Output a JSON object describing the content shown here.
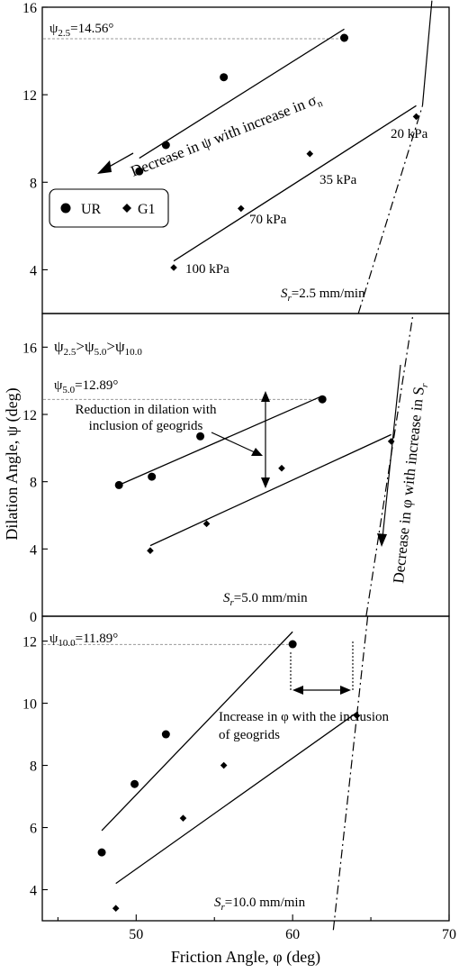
{
  "axes": {
    "xlabel": "Friction Angle, φ (deg)",
    "ylabel": "Dilation Angle, ψ (deg)",
    "xticks": [
      50,
      60,
      70
    ],
    "xlim": [
      44,
      70
    ],
    "panel_yticks": [
      [
        4,
        8,
        12,
        16
      ],
      [
        0,
        4,
        8,
        12,
        16
      ],
      [
        4,
        6,
        8,
        10,
        12
      ]
    ]
  },
  "legend": {
    "ur": "UR",
    "g1": "G1"
  },
  "colors": {
    "ink": "#000000",
    "ref_line": "#9a9a9a"
  },
  "panels": [
    {
      "id": "2.5",
      "ylim": [
        2,
        16
      ],
      "psi_ref": {
        "value": 14.56,
        "base": "ψ",
        "sub": "2.5",
        "rest": "=14.56°"
      },
      "rate": {
        "base": "S",
        "sub": "r",
        "rest": "=2.5 mm/min"
      },
      "annotations": {
        "decrease_psi_main": "Decrease in ψ with increase in σ",
        "decrease_psi_sub": "n",
        "p20": "20 kPa",
        "p35": "35 kPa",
        "p70": "70 kPa",
        "p100": "100 kPa"
      }
    },
    {
      "id": "5.0",
      "ylim": [
        0,
        18
      ],
      "psi_ref": {
        "value": 12.89,
        "base": "ψ",
        "sub": "5.0",
        "rest": "=12.89°"
      },
      "rate": {
        "base": "S",
        "sub": "r",
        "rest": "=5.0 mm/min"
      },
      "annotations": {
        "order_psi1": "ψ",
        "order_sub1": "2.5",
        "order_psi2": ">ψ",
        "order_sub2": "5.0",
        "order_psi3": ">ψ",
        "order_sub3": "10.0",
        "reduction_line1": "Reduction in dilation with",
        "reduction_line2": "inclusion of geogrids",
        "decrease_phi_main": "Decrease in φ with increase in S",
        "decrease_phi_sub": "r"
      }
    },
    {
      "id": "10.0",
      "ylim": [
        3,
        12.8
      ],
      "psi_ref": {
        "value": 11.89,
        "base": "ψ",
        "sub": "10.0",
        "rest": "=11.89°"
      },
      "rate": {
        "base": "S",
        "sub": "r",
        "rest": "=10.0 mm/min"
      },
      "annotations": {
        "increase_line1": "Increase in φ with the inclusion",
        "increase_line2": "of geogrids"
      }
    }
  ],
  "chart_data": [
    {
      "type": "scatter",
      "ylim": [
        2,
        16
      ],
      "xlim": [
        44,
        70
      ],
      "series": [
        {
          "name": "UR",
          "marker": "circle",
          "points": [
            [
              50.2,
              8.5
            ],
            [
              51.9,
              9.7
            ],
            [
              55.6,
              12.8
            ],
            [
              63.3,
              14.6
            ]
          ],
          "fit": [
            [
              50.2,
              9.1
            ],
            [
              63.3,
              15.0
            ]
          ]
        },
        {
          "name": "G1",
          "marker": "diamond",
          "points": [
            [
              52.4,
              4.1
            ],
            [
              56.7,
              6.8
            ],
            [
              61.1,
              9.3
            ],
            [
              67.9,
              11.0
            ]
          ],
          "fit": [
            [
              52.4,
              4.4
            ],
            [
              67.9,
              11.5
            ]
          ]
        }
      ],
      "trend_line": [
        [
          68.3,
          11.5
        ],
        [
          68.9,
          16.3
        ]
      ],
      "dash_dot_line": [
        [
          64.2,
          2.0
        ],
        [
          68.3,
          11.5
        ]
      ]
    },
    {
      "type": "scatter",
      "ylim": [
        0,
        18
      ],
      "xlim": [
        44,
        70
      ],
      "series": [
        {
          "name": "UR",
          "marker": "circle",
          "points": [
            [
              48.9,
              7.8
            ],
            [
              51.0,
              8.3
            ],
            [
              54.1,
              10.7
            ],
            [
              61.9,
              12.9
            ]
          ],
          "fit": [
            [
              48.9,
              7.8
            ],
            [
              61.9,
              13.1
            ]
          ]
        },
        {
          "name": "G1",
          "marker": "diamond",
          "points": [
            [
              50.9,
              3.9
            ],
            [
              54.5,
              5.5
            ],
            [
              59.3,
              8.8
            ],
            [
              66.3,
              10.4
            ]
          ],
          "fit": [
            [
              50.9,
              4.2
            ],
            [
              66.3,
              10.8
            ]
          ]
        }
      ],
      "dash_dot_line": [
        [
          64.7,
          0.0
        ],
        [
          67.7,
          18.0
        ]
      ]
    },
    {
      "type": "scatter",
      "ylim": [
        3,
        12.8
      ],
      "xlim": [
        44,
        70
      ],
      "series": [
        {
          "name": "UR",
          "marker": "circle",
          "points": [
            [
              47.8,
              5.2
            ],
            [
              49.9,
              7.4
            ],
            [
              51.9,
              9.0
            ],
            [
              60.0,
              11.9
            ]
          ],
          "fit": [
            [
              47.8,
              5.9
            ],
            [
              60.0,
              12.3
            ]
          ]
        },
        {
          "name": "G1",
          "marker": "diamond",
          "points": [
            [
              48.7,
              3.4
            ],
            [
              53.0,
              6.3
            ],
            [
              55.6,
              8.0
            ],
            [
              64.1,
              9.6
            ]
          ],
          "fit": [
            [
              48.7,
              4.2
            ],
            [
              64.1,
              9.7
            ]
          ]
        }
      ],
      "dash_dot_line": [
        [
          62.6,
          2.7
        ],
        [
          64.8,
          12.8
        ]
      ]
    }
  ]
}
